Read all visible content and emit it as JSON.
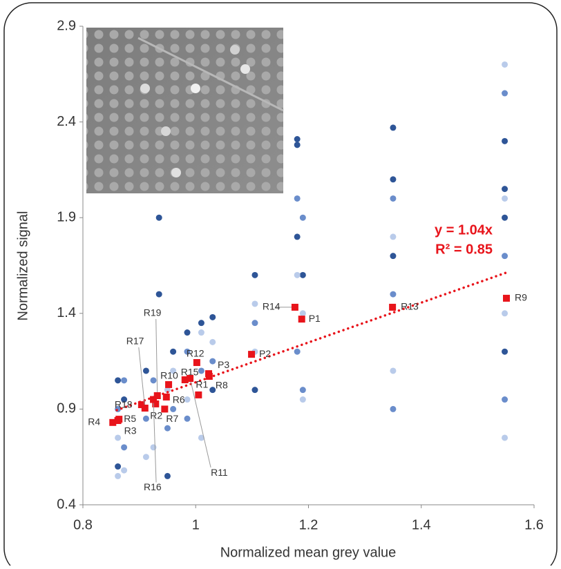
{
  "chart_data": {
    "type": "scatter",
    "xlabel": "Normalized mean grey value",
    "ylabel": "Normalized signal",
    "xlim": [
      0.8,
      1.6
    ],
    "ylim": [
      0.4,
      2.9
    ],
    "xticks": [
      0.8,
      1,
      1.2,
      1.4,
      1.6
    ],
    "yticks": [
      0.4,
      0.9,
      1.4,
      1.9,
      2.4,
      2.9
    ],
    "series": [
      {
        "color": "#2e5597",
        "x": [
          0.862,
          0.862,
          0.873,
          0.912,
          0.935,
          0.935,
          0.95,
          0.96,
          0.985,
          1.01,
          1.03,
          1.03,
          1.105,
          1.105,
          1.18,
          1.18,
          1.18,
          1.19,
          1.35,
          1.35,
          1.35,
          1.548,
          1.548,
          1.548,
          1.548
        ],
        "y": [
          1.05,
          0.6,
          0.95,
          1.1,
          1.9,
          1.5,
          0.55,
          1.2,
          1.3,
          1.35,
          1.38,
          1.0,
          1.6,
          1.0,
          2.31,
          2.28,
          1.8,
          1.6,
          2.37,
          2.1,
          1.7,
          2.3,
          2.05,
          1.9,
          1.2
        ]
      },
      {
        "color": "#6a8dcb",
        "x": [
          0.862,
          0.873,
          0.873,
          0.912,
          0.925,
          0.95,
          0.96,
          0.985,
          0.985,
          1.01,
          1.03,
          1.105,
          1.18,
          1.18,
          1.19,
          1.19,
          1.35,
          1.35,
          1.35,
          1.548,
          1.548,
          1.548
        ],
        "y": [
          0.9,
          1.05,
          0.7,
          0.85,
          1.05,
          0.8,
          0.9,
          1.2,
          0.85,
          1.1,
          1.15,
          1.35,
          2.0,
          1.2,
          1.9,
          1.0,
          2.0,
          1.5,
          0.9,
          2.55,
          1.7,
          0.95
        ]
      },
      {
        "color": "#b9cbea",
        "x": [
          0.862,
          0.862,
          0.873,
          0.912,
          0.925,
          0.95,
          0.96,
          0.985,
          1.01,
          1.01,
          1.03,
          1.105,
          1.105,
          1.18,
          1.19,
          1.19,
          1.35,
          1.35,
          1.548,
          1.548,
          1.548,
          1.548
        ],
        "y": [
          0.75,
          0.55,
          0.58,
          0.65,
          0.7,
          1.0,
          1.1,
          0.95,
          1.3,
          0.75,
          1.25,
          1.2,
          1.45,
          1.6,
          1.4,
          0.95,
          1.8,
          1.1,
          2.7,
          2.0,
          1.4,
          0.75
        ]
      }
    ],
    "points": {
      "color": "#e8141b",
      "labels": [
        "R4",
        "R5",
        "R3",
        "R18",
        "R17",
        "R2",
        "R19",
        "R16",
        "R7",
        "R6",
        "R10",
        "R15",
        "R12",
        "R11",
        "R1",
        "R8",
        "P3",
        "P2",
        "P1",
        "R14",
        "R13",
        "R9"
      ],
      "x": [
        0.853,
        0.864,
        0.862,
        0.904,
        0.91,
        0.929,
        0.932,
        0.925,
        0.945,
        0.948,
        0.952,
        0.981,
        1.002,
        0.99,
        1.005,
        1.024,
        1.023,
        1.099,
        1.188,
        1.176,
        1.349,
        1.551
      ],
      "y": [
        0.83,
        0.847,
        0.84,
        0.923,
        0.905,
        0.927,
        0.97,
        0.95,
        0.9,
        0.963,
        1.028,
        1.053,
        1.143,
        1.06,
        0.974,
        1.071,
        1.085,
        1.186,
        1.37,
        1.432,
        1.432,
        1.479
      ]
    },
    "trendline": {
      "label": "y = 1.04x",
      "r2_label": "R² = 0.85",
      "slope": 1.04,
      "xrange": [
        0.86,
        1.55
      ],
      "color": "#e8141b"
    }
  }
}
